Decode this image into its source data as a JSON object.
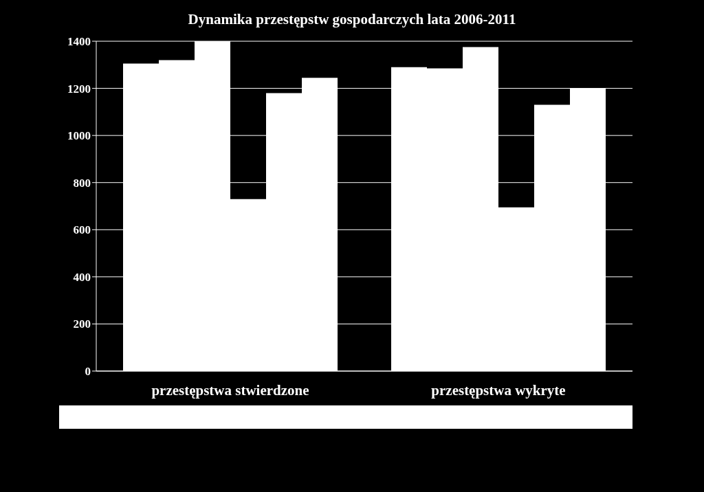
{
  "chart_data": {
    "type": "bar",
    "title": "Dynamika przestępstw gospodarczych lata 2006-2011",
    "categories": [
      "przestępstwa stwierdzone",
      "przestępstwa wykryte"
    ],
    "series": [
      {
        "color": "#ffffff",
        "values": [
          1305,
          1290
        ]
      },
      {
        "color": "#ffffff",
        "values": [
          1320,
          1285
        ]
      },
      {
        "color": "#ffffff",
        "values": [
          1400,
          1375
        ]
      },
      {
        "color": "#ffffff",
        "values": [
          730,
          695
        ]
      },
      {
        "color": "#ffffff",
        "values": [
          1180,
          1130
        ]
      },
      {
        "color": "#ffffff",
        "values": [
          1245,
          1200
        ]
      }
    ],
    "ylim": [
      0,
      1400
    ],
    "yticks": [
      0,
      200,
      400,
      600,
      800,
      1000,
      1200,
      1400
    ],
    "grid": "y"
  }
}
